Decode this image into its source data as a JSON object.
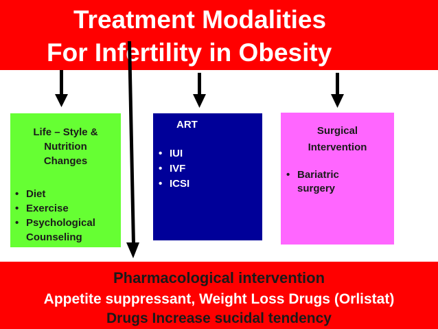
{
  "title": {
    "line1": "Treatment Modalities",
    "line2": "For Infertility in Obesity"
  },
  "boxes": {
    "lifestyle": {
      "heading": [
        "Life – Style &",
        "Nutrition",
        "Changes"
      ],
      "items": [
        "Diet",
        "Exercise",
        "Psychological"
      ],
      "continuation": "Counseling",
      "color": "#66ff33"
    },
    "art": {
      "heading": "ART",
      "items": [
        "IUI",
        "IVF",
        "ICSI"
      ],
      "color": "#000099"
    },
    "surgical": {
      "heading": [
        "Surgical",
        "Intervention"
      ],
      "items": [
        "Bariatric"
      ],
      "continuation": "surgery",
      "color": "#ff66ff"
    }
  },
  "bottom": {
    "heading": "Pharmacological intervention",
    "line2": "Appetite suppressant, Weight Loss Drugs (Orlistat)",
    "line3": "Drugs Increase sucidal tendency"
  },
  "colors": {
    "band": "#ff0000",
    "arrow": "#000000"
  },
  "bullet_glyph": "•"
}
